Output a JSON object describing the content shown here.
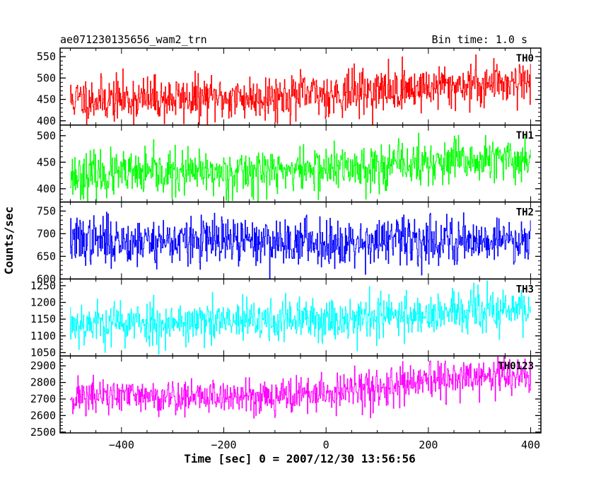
{
  "header": {
    "filename": "ae071230135656_wam2_trn",
    "bin_time": "Bin time: 1.0 s"
  },
  "axes": {
    "xlabel": "Time [sec] 0 = 2007/12/30 13:56:56",
    "ylabel": "Counts/sec",
    "xlim": [
      -520,
      420
    ],
    "xticks": [
      -400,
      -200,
      0,
      200,
      400
    ],
    "xtick_labels": [
      "−400",
      "−200",
      "0",
      "200",
      "400"
    ]
  },
  "chart_data": {
    "type": "line",
    "x": {
      "start": -500,
      "end": 400,
      "step": 1
    },
    "panels": [
      {
        "name": "TH0",
        "color": "#ff0000",
        "ylim": [
          390,
          570
        ],
        "yticks": [
          400,
          450,
          500,
          550
        ],
        "ytick_labels": [
          "400",
          "450",
          "500",
          "550"
        ],
        "trend": [
          [
            -500,
            450
          ],
          [
            -200,
            452
          ],
          [
            0,
            462
          ],
          [
            200,
            478
          ],
          [
            400,
            495
          ]
        ],
        "noise_sd": 26,
        "seed": 11
      },
      {
        "name": "TH1",
        "color": "#00ff00",
        "ylim": [
          375,
          520
        ],
        "yticks": [
          400,
          450,
          500
        ],
        "ytick_labels": [
          "400",
          "450",
          "500"
        ],
        "trend": [
          [
            -500,
            425
          ],
          [
            -200,
            430
          ],
          [
            0,
            438
          ],
          [
            200,
            448
          ],
          [
            400,
            455
          ]
        ],
        "noise_sd": 21,
        "seed": 23
      },
      {
        "name": "TH2",
        "color": "#0000ff",
        "ylim": [
          600,
          770
        ],
        "yticks": [
          600,
          650,
          700,
          750
        ],
        "ytick_labels": [
          "600",
          "650",
          "700",
          "750"
        ],
        "trend": [
          [
            -500,
            685
          ],
          [
            -200,
            683
          ],
          [
            0,
            682
          ],
          [
            200,
            685
          ],
          [
            400,
            688
          ]
        ],
        "noise_sd": 26,
        "seed": 37
      },
      {
        "name": "TH3",
        "color": "#00ffff",
        "ylim": [
          1040,
          1270
        ],
        "yticks": [
          1050,
          1100,
          1150,
          1200,
          1250
        ],
        "ytick_labels": [
          "1050",
          "1100",
          "1150",
          "1200",
          "1250"
        ],
        "trend": [
          [
            -500,
            1138
          ],
          [
            -200,
            1140
          ],
          [
            0,
            1150
          ],
          [
            200,
            1165
          ],
          [
            400,
            1180
          ]
        ],
        "noise_sd": 33,
        "seed": 53
      },
      {
        "name": "TH0123",
        "color": "#ff00ff",
        "ylim": [
          2495,
          2960
        ],
        "yticks": [
          2500,
          2600,
          2700,
          2800,
          2900
        ],
        "ytick_labels": [
          "2500",
          "2600",
          "2700",
          "2800",
          "2900"
        ],
        "trend": [
          [
            -500,
            2715
          ],
          [
            -200,
            2712
          ],
          [
            0,
            2730
          ],
          [
            200,
            2800
          ],
          [
            300,
            2835
          ],
          [
            400,
            2840
          ]
        ],
        "noise_sd": 55,
        "seed": 71
      }
    ]
  }
}
